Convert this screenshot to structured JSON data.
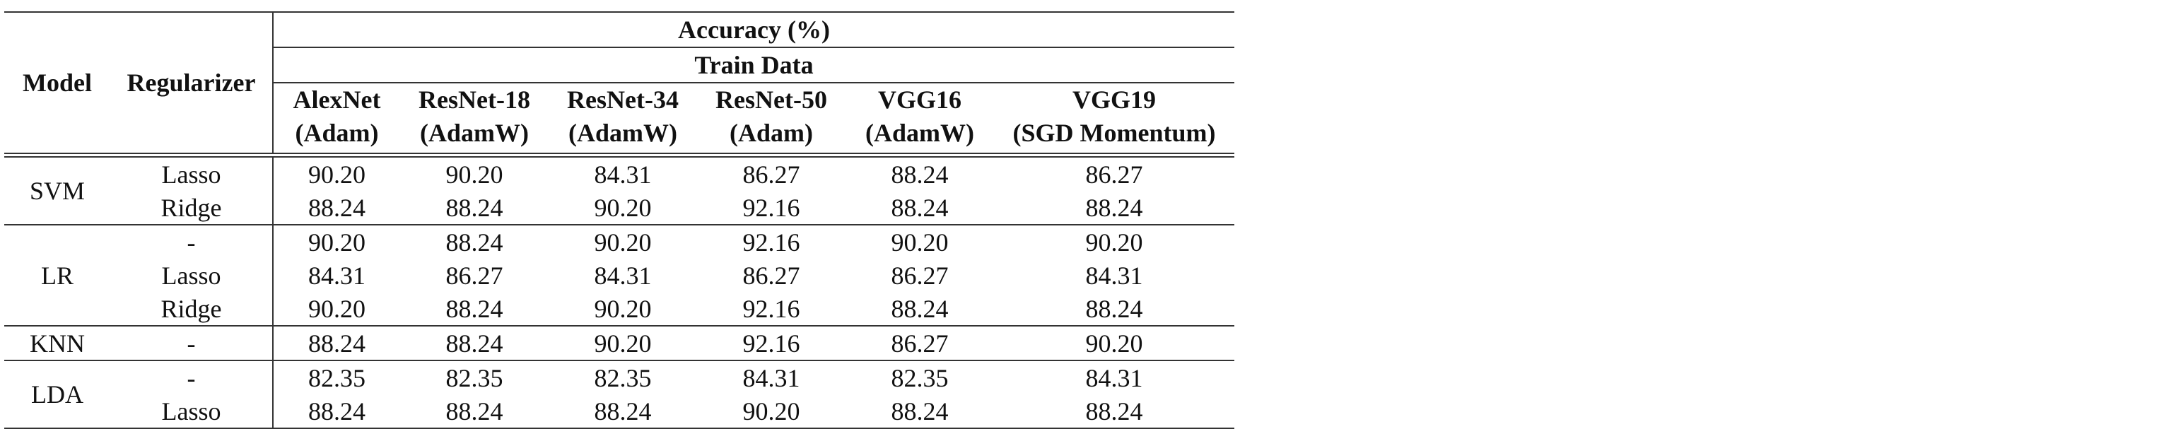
{
  "header": {
    "model_label": "Model",
    "regularizer_label": "Regularizer",
    "accuracy_label": "Accuracy (%)",
    "train_data_label": "Train Data",
    "columns": [
      {
        "arch": "AlexNet",
        "opt": "(Adam)"
      },
      {
        "arch": "ResNet-18",
        "opt": "(AdamW)"
      },
      {
        "arch": "ResNet-34",
        "opt": "(AdamW)"
      },
      {
        "arch": "ResNet-50",
        "opt": "(Adam)"
      },
      {
        "arch": "VGG16",
        "opt": "(AdamW)"
      },
      {
        "arch": "VGG19",
        "opt": "(SGD Momentum)"
      }
    ]
  },
  "groups": [
    {
      "model": "SVM",
      "rows": [
        {
          "regularizer": "Lasso",
          "values": [
            "90.20",
            "90.20",
            "84.31",
            "86.27",
            "88.24",
            "86.27"
          ]
        },
        {
          "regularizer": "Ridge",
          "values": [
            "88.24",
            "88.24",
            "90.20",
            "92.16",
            "88.24",
            "88.24"
          ]
        }
      ]
    },
    {
      "model": "LR",
      "rows": [
        {
          "regularizer": "-",
          "values": [
            "90.20",
            "88.24",
            "90.20",
            "92.16",
            "90.20",
            "90.20"
          ]
        },
        {
          "regularizer": "Lasso",
          "values": [
            "84.31",
            "86.27",
            "84.31",
            "86.27",
            "86.27",
            "84.31"
          ]
        },
        {
          "regularizer": "Ridge",
          "values": [
            "90.20",
            "88.24",
            "90.20",
            "92.16",
            "88.24",
            "88.24"
          ]
        }
      ]
    },
    {
      "model": "KNN",
      "rows": [
        {
          "regularizer": "-",
          "values": [
            "88.24",
            "88.24",
            "90.20",
            "92.16",
            "86.27",
            "90.20"
          ]
        }
      ]
    },
    {
      "model": "LDA",
      "rows": [
        {
          "regularizer": "-",
          "values": [
            "82.35",
            "82.35",
            "82.35",
            "84.31",
            "82.35",
            "84.31"
          ]
        },
        {
          "regularizer": "Lasso",
          "values": [
            "88.24",
            "88.24",
            "88.24",
            "90.20",
            "88.24",
            "88.24"
          ]
        }
      ]
    }
  ]
}
